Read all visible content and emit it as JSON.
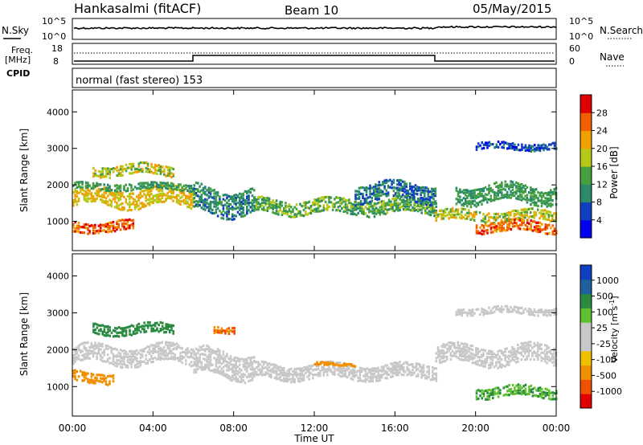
{
  "header": {
    "station": "Hankasalmi (fitACF)",
    "beam": "Beam 10",
    "date": "05/May/2015"
  },
  "colors": {
    "power": [
      "#0000ee",
      "#1040c0",
      "#2a8a6a",
      "#46a040",
      "#b8c818",
      "#f0a000",
      "#f06000",
      "#e00000"
    ],
    "velocity": [
      "#e00000",
      "#f05000",
      "#f09000",
      "#f0c000",
      "#c8c8c8",
      "#c8c8c8",
      "#60c030",
      "#2a8a40",
      "#2060a0",
      "#1040c0"
    ]
  },
  "noise_panel": {
    "left_label": "N.Sky",
    "right_label": "N.Search",
    "left_ticks": [
      "10^5",
      "10^0"
    ],
    "right_ticks": [
      "10^5",
      "10^0"
    ]
  },
  "freq_panel": {
    "left_label": [
      "Freq.",
      "[MHz]"
    ],
    "cpid_label": "CPID",
    "right_label": "Nave",
    "left_ticks": [
      "18",
      "8"
    ],
    "right_ticks": [
      "60",
      "0"
    ]
  },
  "cpid_text": "normal (fast stereo) 153",
  "chart_data": [
    {
      "type": "heatmap",
      "panel": "power",
      "ylabel": "Slant Range [km]",
      "yticks": [
        1000,
        2000,
        3000,
        4000
      ],
      "ylim": [
        200,
        4600
      ],
      "xlim": [
        0,
        24
      ],
      "colorbar": {
        "label": "Power [dB]",
        "ticks": [
          4,
          8,
          12,
          16,
          20,
          24,
          28
        ],
        "range": [
          0,
          32
        ]
      },
      "bands": [
        {
          "x": [
            0,
            6
          ],
          "y_center": 1700,
          "width": 500,
          "value": 20
        },
        {
          "x": [
            0,
            6
          ],
          "y_center": 2000,
          "width": 200,
          "value": 12
        },
        {
          "x": [
            1,
            5
          ],
          "y_center": 2450,
          "width": 300,
          "value": 18
        },
        {
          "x": [
            0,
            3
          ],
          "y_center": 900,
          "width": 300,
          "value": 26
        },
        {
          "x": [
            6,
            9
          ],
          "y_center": 1600,
          "width": 700,
          "value": 10
        },
        {
          "x": [
            9,
            18
          ],
          "y_center": 1450,
          "width": 400,
          "value": 14
        },
        {
          "x": [
            14,
            18
          ],
          "y_center": 1850,
          "width": 500,
          "value": 9
        },
        {
          "x": [
            18,
            24
          ],
          "y_center": 1200,
          "width": 300,
          "value": 18
        },
        {
          "x": [
            20,
            24
          ],
          "y_center": 900,
          "width": 300,
          "value": 26
        },
        {
          "x": [
            19,
            24
          ],
          "y_center": 1800,
          "width": 500,
          "value": 12
        },
        {
          "x": [
            20,
            24
          ],
          "y_center": 3100,
          "width": 200,
          "value": 6
        }
      ]
    },
    {
      "type": "heatmap",
      "panel": "velocity",
      "xlabel": "Time UT",
      "ylabel": "Slant Range [km]",
      "yticks": [
        1000,
        2000,
        3000,
        4000
      ],
      "ylim": [
        200,
        4600
      ],
      "xlim": [
        0,
        24
      ],
      "xticks": [
        "00:00",
        "04:00",
        "08:00",
        "12:00",
        "16:00",
        "20:00",
        "00:00"
      ],
      "colorbar": {
        "label": "Velocity [m s^-1]",
        "ticks": [
          "-1000",
          "-500",
          "-100",
          "-25",
          "25",
          "100",
          "500",
          "1000"
        ]
      },
      "bands": [
        {
          "x": [
            0,
            6
          ],
          "y_center": 1900,
          "width": 500,
          "value": 0
        },
        {
          "x": [
            1,
            5
          ],
          "y_center": 2600,
          "width": 300,
          "value": 200
        },
        {
          "x": [
            0,
            2
          ],
          "y_center": 1300,
          "width": 300,
          "value": -300
        },
        {
          "x": [
            6,
            9
          ],
          "y_center": 1650,
          "width": 700,
          "value": 0
        },
        {
          "x": [
            7,
            8
          ],
          "y_center": 2600,
          "width": 200,
          "value": -500
        },
        {
          "x": [
            9,
            18
          ],
          "y_center": 1450,
          "width": 400,
          "value": 0
        },
        {
          "x": [
            12,
            14
          ],
          "y_center": 1650,
          "width": 100,
          "value": -150
        },
        {
          "x": [
            18,
            24
          ],
          "y_center": 1900,
          "width": 500,
          "value": 0
        },
        {
          "x": [
            20,
            24
          ],
          "y_center": 900,
          "width": 300,
          "value": 100
        },
        {
          "x": [
            19,
            24
          ],
          "y_center": 3100,
          "width": 200,
          "value": 0
        }
      ]
    }
  ]
}
